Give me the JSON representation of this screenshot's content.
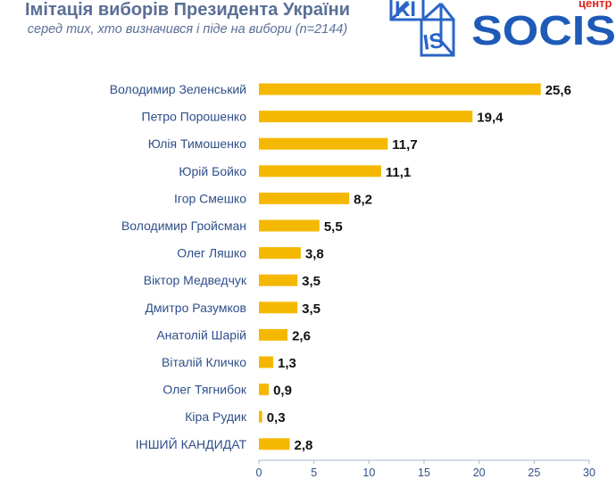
{
  "header": {
    "title": "Імітація виборів Президента України",
    "subtitle": "серед тих, хто визначився і піде на вибори (n=2144)"
  },
  "logos": {
    "kiis_top": "KI",
    "kiis_bottom": "IS",
    "socis_center": "центр",
    "socis_name": "SOCIS"
  },
  "colors": {
    "bar": "#f5b800",
    "text_blue": "#2f4f8a",
    "title_blue": "#5a6f96",
    "kiis_blue": "#2a64c8",
    "socis_blue": "#1e5bb8",
    "socis_red": "#e0231b"
  },
  "chart_data": {
    "type": "bar",
    "orientation": "horizontal",
    "categories": [
      "Володимир Зеленський",
      "Петро Порошенко",
      "Юлія Тимошенко",
      "Юрій Бойко",
      "Ігор Смешко",
      "Володимир Гройсман",
      "Олег Ляшко",
      "Віктор Медведчук",
      "Дмитро Разумков",
      "Анатолій Шарій",
      "Віталій Кличко",
      "Олег Тягнибок",
      "Кіра Рудик",
      "ІНШИЙ КАНДИДАТ"
    ],
    "values": [
      25.6,
      19.4,
      11.7,
      11.1,
      8.2,
      5.5,
      3.8,
      3.5,
      3.5,
      2.6,
      1.3,
      0.9,
      0.3,
      2.8
    ],
    "value_labels": [
      "25,6",
      "19,4",
      "11,7",
      "11,1",
      "8,2",
      "5,5",
      "3,8",
      "3,5",
      "3,5",
      "2,6",
      "1,3",
      "0,9",
      "0,3",
      "2,8"
    ],
    "xlim": [
      0,
      30
    ],
    "xticks": [
      0,
      5,
      10,
      15,
      20,
      25,
      30
    ],
    "grid": false,
    "legend": "none"
  }
}
